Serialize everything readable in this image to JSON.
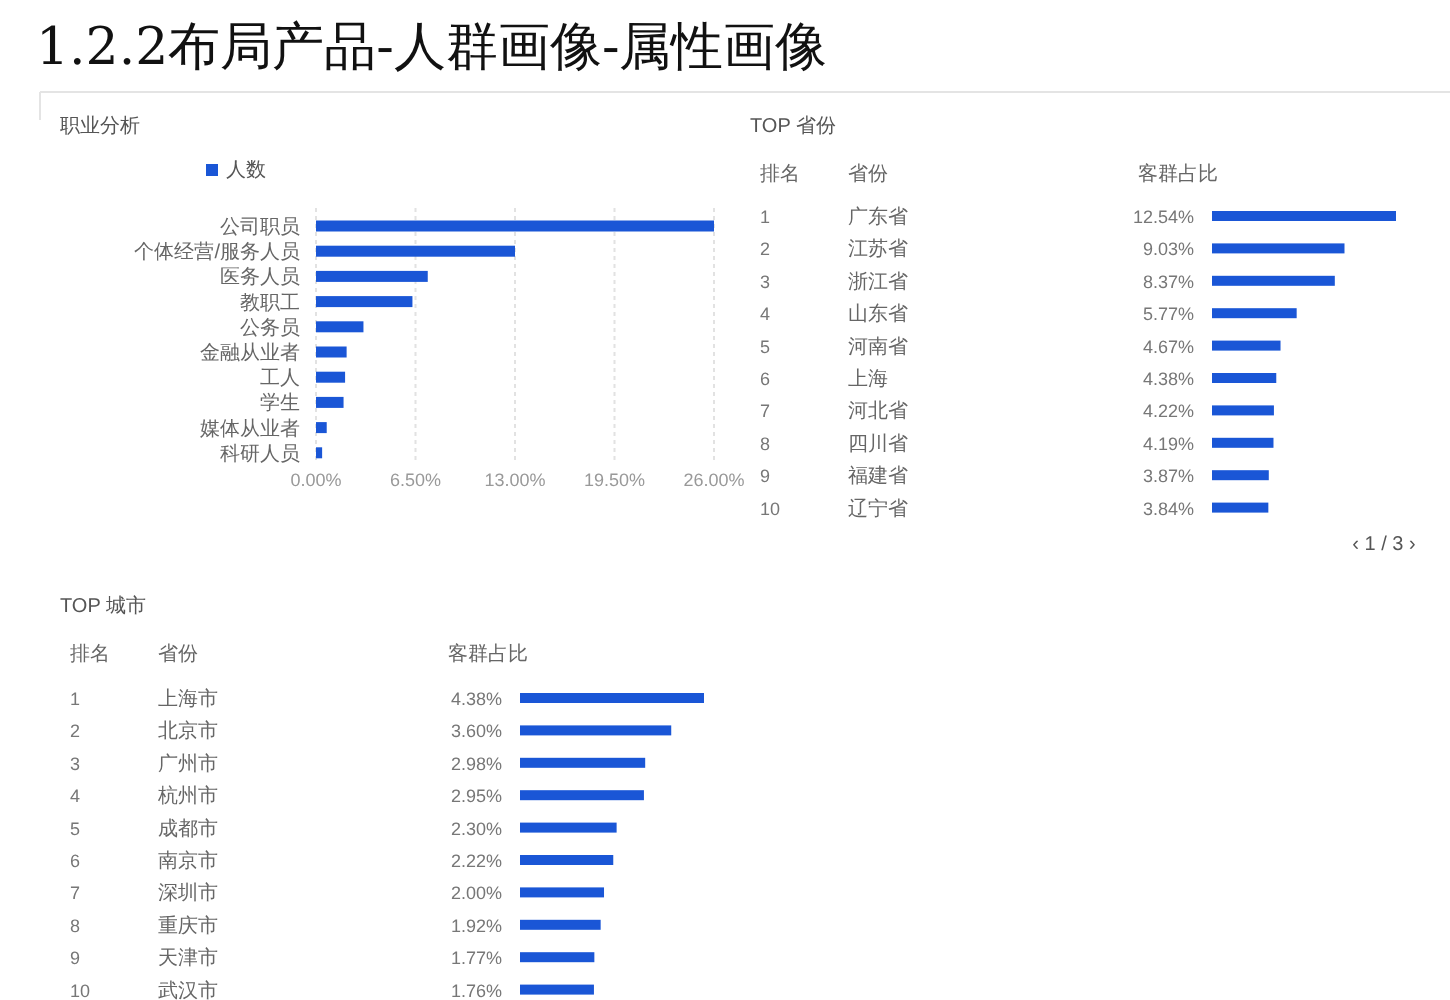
{
  "chart_data": [
    {
      "type": "bar",
      "orientation": "horizontal",
      "title": "职业分析",
      "annotations": [
        "1.2.2布局产品-人群画像-属性画像"
      ],
      "categories": [
        "公司职员",
        "个体经营/服务人员",
        "医务人员",
        "教职工",
        "公务员",
        "金融从业者",
        "工人",
        "学生",
        "媒体从业者",
        "科研人员"
      ],
      "series": [
        {
          "name": "人数",
          "color": "#1a56d6",
          "values": [
            26.0,
            13.0,
            7.3,
            6.3,
            3.1,
            2.0,
            1.9,
            1.8,
            0.7,
            0.4
          ]
        }
      ],
      "xlim": [
        0,
        26
      ],
      "xticks": [
        {
          "value": 0,
          "label": "0.00%"
        },
        {
          "value": 6.5,
          "label": "6.50%"
        },
        {
          "value": 13,
          "label": "13.00%"
        },
        {
          "value": 19.5,
          "label": "19.50%"
        },
        {
          "value": 26,
          "label": "26.00%"
        }
      ],
      "grid": "x",
      "legend": "top"
    },
    {
      "type": "bar",
      "orientation": "horizontal",
      "title": "TOP 省份",
      "ylabel": "省份",
      "xlabel": "客群占比",
      "categories": [
        "广东省",
        "江苏省",
        "浙江省",
        "山东省",
        "河南省",
        "上海",
        "河北省",
        "四川省",
        "福建省",
        "辽宁省"
      ],
      "values": [
        12.54,
        9.03,
        8.37,
        5.77,
        4.67,
        4.38,
        4.22,
        4.19,
        3.87,
        3.84
      ],
      "color": "#1a56d6",
      "value_labels": [
        "12.54%",
        "9.03%",
        "8.37%",
        "5.77%",
        "4.67%",
        "4.38%",
        "4.22%",
        "4.19%",
        "3.87%",
        "3.84%"
      ],
      "annotations": [
        "排名",
        "1",
        "2",
        "3",
        "4",
        "5",
        "6",
        "7",
        "8",
        "9",
        "10",
        "‹  1 / 3  ›"
      ]
    },
    {
      "type": "bar",
      "orientation": "horizontal",
      "title": "TOP 城市",
      "ylabel": "省份",
      "xlabel": "客群占比",
      "categories": [
        "上海市",
        "北京市",
        "广州市",
        "杭州市",
        "成都市",
        "南京市",
        "深圳市",
        "重庆市",
        "天津市",
        "武汉市"
      ],
      "values": [
        4.38,
        3.6,
        2.98,
        2.95,
        2.3,
        2.22,
        2.0,
        1.92,
        1.77,
        1.76
      ],
      "color": "#1a56d6",
      "value_labels": [
        "4.38%",
        "3.60%",
        "2.98%",
        "2.95%",
        "2.30%",
        "2.22%",
        "2.00%",
        "1.92%",
        "1.77%",
        "1.76%"
      ],
      "annotations": [
        "排名",
        "1",
        "2",
        "3",
        "4",
        "5",
        "6",
        "7",
        "8",
        "9",
        "10"
      ]
    }
  ]
}
